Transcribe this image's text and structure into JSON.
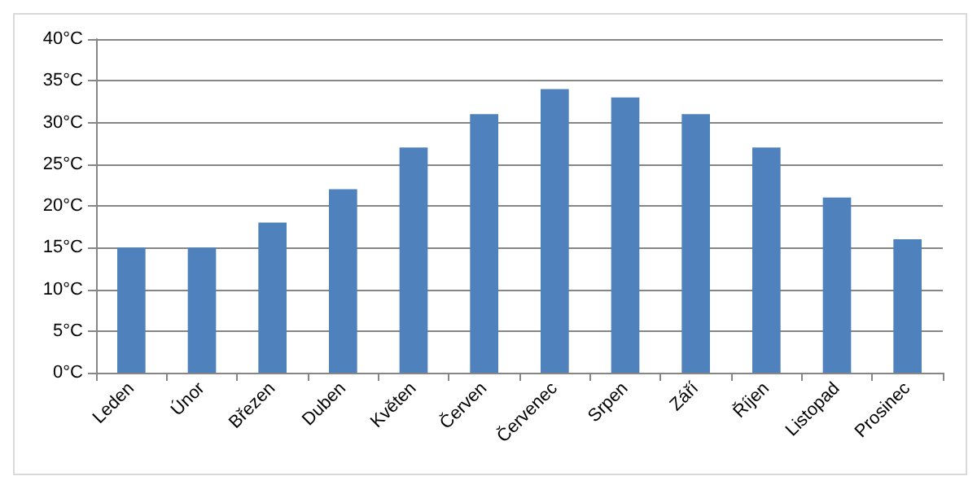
{
  "chart_data": {
    "type": "bar",
    "categories": [
      "Leden",
      "Únor",
      "Březen",
      "Duben",
      "Květen",
      "Červen",
      "Červenec",
      "Srpen",
      "Září",
      "Říjen",
      "Listopad",
      "Prosinec"
    ],
    "values": [
      15,
      15,
      18,
      22,
      27,
      31,
      34,
      33,
      31,
      27,
      21,
      16
    ],
    "color": "#4f81bd",
    "ylim": [
      0,
      40
    ],
    "yticks": [
      {
        "value": 0,
        "label": "0°C"
      },
      {
        "value": 5,
        "label": "5°C"
      },
      {
        "value": 10,
        "label": "10°C"
      },
      {
        "value": 15,
        "label": "15°C"
      },
      {
        "value": 20,
        "label": "20°C"
      },
      {
        "value": 25,
        "label": "25°C"
      },
      {
        "value": 30,
        "label": "30°C"
      },
      {
        "value": 35,
        "label": "35°C"
      },
      {
        "value": 40,
        "label": "40°C"
      }
    ],
    "grid": "y"
  }
}
